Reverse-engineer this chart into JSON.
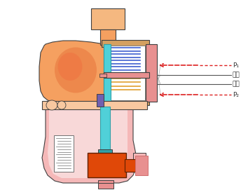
{
  "bg_color": "#ffffff",
  "or_light": "#F5A060",
  "or_body": "#E87840",
  "or_dark": "#D06030",
  "or_pale": "#F8C8A0",
  "or_top": "#F5B880",
  "pink_light": "#F5B8B8",
  "pink_pale": "#F8D8D8",
  "pink_med": "#E89090",
  "pink_dark": "#D07070",
  "cyan_light": "#50D0D8",
  "cyan_dark": "#30A0A8",
  "blue_line": "#4060D0",
  "orange_line": "#E0A030",
  "purple": "#7060B0",
  "orange_block": "#E04808",
  "tan": "#D4A060",
  "tan_light": "#E8C888",
  "white": "#FFFFFF",
  "gray": "#707070",
  "dark": "#404040",
  "red": "#DD2020",
  "label_p1": "P₁",
  "label_p2": "P₂",
  "label_huosai": "活塞",
  "label_qigang": "气缸"
}
